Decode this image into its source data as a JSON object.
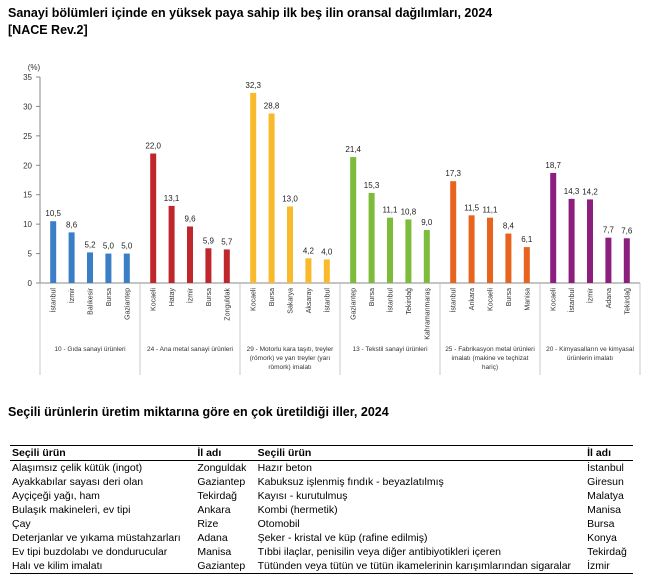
{
  "title_line1": "Sanayi bölümleri içinde en yüksek paya sahip ilk beş ilin oransal dağılımları, 2024",
  "title_line2": "[NACE Rev.2]",
  "chart_data": {
    "type": "bar",
    "ylabel": "(%)",
    "ylim": [
      0,
      35
    ],
    "yticks": [
      0,
      5,
      10,
      15,
      20,
      25,
      30,
      35
    ],
    "grid": false,
    "groups": [
      {
        "label": "10 - Gıda sanayi ürünleri",
        "color": "#3a7ec6",
        "categories": [
          "İstanbul",
          "İzmir",
          "Balıkesir",
          "Bursa",
          "Gaziantep"
        ],
        "values": [
          10.5,
          8.6,
          5.2,
          5.0,
          5.0
        ],
        "value_labels": [
          "10,5",
          "8,6",
          "5,2",
          "5,0",
          "5,0"
        ]
      },
      {
        "label": "24 - Ana metal sanayi ürünleri",
        "color": "#c0272d",
        "categories": [
          "Kocaeli",
          "Hatay",
          "İzmir",
          "Bursa",
          "Zonguldak"
        ],
        "values": [
          22.0,
          13.1,
          9.6,
          5.9,
          5.7
        ],
        "value_labels": [
          "22,0",
          "13,1",
          "9,6",
          "5,9",
          "5,7"
        ]
      },
      {
        "label": "29 - Motorlu kara taşıtı, treyler (römork) ve yarı treyler (yarı römork) imalatı",
        "color": "#f8b92a",
        "label_lines": [
          "29 - Motorlu kara taşıtı, treyler",
          "(römork) ve yarı treyler (yarı",
          "römork) imalatı"
        ],
        "categories": [
          "Kocaeli",
          "Bursa",
          "Sakarya",
          "Aksaray",
          "İstanbul"
        ],
        "values": [
          32.3,
          28.8,
          13.0,
          4.2,
          4.0
        ],
        "value_labels": [
          "32,3",
          "28,8",
          "13,0",
          "4,2",
          "4,0"
        ]
      },
      {
        "label": "13 - Tekstil sanayi ürünleri",
        "color": "#7dbb3a",
        "categories": [
          "Gaziantep",
          "Bursa",
          "İstanbul",
          "Tekirdağ",
          "Kahramanmaraş"
        ],
        "values": [
          21.4,
          15.3,
          11.1,
          10.8,
          9.0
        ],
        "value_labels": [
          "21,4",
          "15,3",
          "11,1",
          "10,8",
          "9,0"
        ]
      },
      {
        "label": "25 - Fabrikasyon metal ürünleri imalatı (makine ve teçhizat hariç)",
        "color": "#e8641e",
        "label_lines": [
          "25 - Fabrikasyon metal ürünleri",
          "imalatı (makine ve teçhizat",
          "hariç)"
        ],
        "categories": [
          "İstanbul",
          "Ankara",
          "Kocaeli",
          "Bursa",
          "Manisa"
        ],
        "values": [
          17.3,
          11.5,
          11.1,
          8.4,
          6.1
        ],
        "value_labels": [
          "17,3",
          "11,5",
          "11,1",
          "8,4",
          "6,1"
        ]
      },
      {
        "label": "20 - Kimyasalların ve kimyasal ürünlerin imalatı",
        "color": "#8c1f7e",
        "label_lines": [
          "20 - Kimyasalların ve kimyasal",
          "ürünlerin imalatı"
        ],
        "categories": [
          "Kocaeli",
          "İstanbul",
          "İzmir",
          "Adana",
          "Tekirdağ"
        ],
        "values": [
          18.7,
          14.3,
          14.2,
          7.7,
          7.6
        ],
        "value_labels": [
          "18,7",
          "14,3",
          "14,2",
          "7,7",
          "7,6"
        ]
      }
    ]
  },
  "products_title": "Seçili ürünlerin üretim miktarına göre en çok üretildiği iller, 2024",
  "table": {
    "headers": [
      "Seçili ürün",
      "İl adı",
      "Seçili ürün",
      "İl adı"
    ],
    "rows": [
      [
        "Alaşımsız çelik kütük (ingot)",
        "Zonguldak",
        "Hazır beton",
        "İstanbul"
      ],
      [
        "Ayakkabılar sayası deri olan",
        "Gaziantep",
        "Kabuksuz işlenmiş fındık - beyazlatılmış",
        "Giresun"
      ],
      [
        "Ayçiçeği yağı, ham",
        "Tekirdağ",
        "Kayısı - kurutulmuş",
        "Malatya"
      ],
      [
        "Bulaşık makineleri, ev tipi",
        "Ankara",
        "Kombi (hermetik)",
        "Manisa"
      ],
      [
        "Çay",
        "Rize",
        "Otomobil",
        "Bursa"
      ],
      [
        "Deterjanlar ve yıkama müstahzarları",
        "Adana",
        "Şeker - kristal ve küp (rafine edilmiş)",
        "Konya"
      ],
      [
        "Ev tipi buzdolabı ve dondurucular",
        "Manisa",
        "Tıbbi ilaçlar, penisilin veya diğer antibiyotikleri içeren",
        "Tekirdağ"
      ],
      [
        "Halı ve kilim imalatı",
        "Gaziantep",
        "Tütünden veya tütün ve tütün ikamelerinin karışımlarından sigaralar",
        "İzmir"
      ]
    ]
  }
}
